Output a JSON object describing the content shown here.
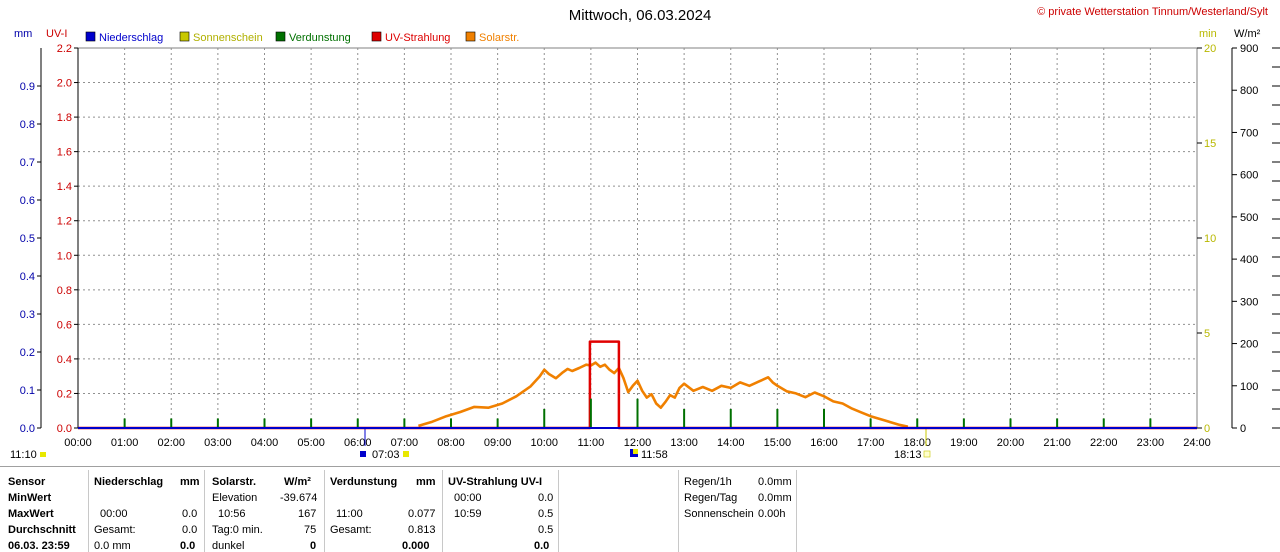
{
  "title": "Mittwoch, 06.03.2024",
  "copyright": "© private Wetterstation Tinnum/Westerland/Sylt",
  "axis_units": {
    "mm": "mm",
    "uvi": "UV-I",
    "min": "min",
    "wm2": "W/m²"
  },
  "legend": [
    {
      "label": "Niederschlag",
      "color": "#0000cc"
    },
    {
      "label": "Sonnenschein",
      "color": "#c8c800"
    },
    {
      "label": "Verdunstung",
      "color": "#007000"
    },
    {
      "label": "UV-Strahlung",
      "color": "#dd0000"
    },
    {
      "label": "Solarstr.",
      "color": "#f08000"
    }
  ],
  "markers": {
    "left_time": "11:10",
    "sunrise": "07:03",
    "noon": "11:58",
    "sunset": "18:13"
  },
  "chart_data": {
    "type": "line",
    "x_unit": "hours",
    "x_ticks": [
      "00:00",
      "01:00",
      "02:00",
      "03:00",
      "04:00",
      "05:00",
      "06:00",
      "07:00",
      "08:00",
      "09:00",
      "10:00",
      "11:00",
      "12:00",
      "13:00",
      "14:00",
      "15:00",
      "16:00",
      "17:00",
      "18:00",
      "19:00",
      "20:00",
      "21:00",
      "22:00",
      "23:00",
      "24:00"
    ],
    "xlim": [
      0,
      24
    ],
    "axes": {
      "mm": {
        "ylim": [
          0,
          1.0
        ],
        "ticks": [
          "0.0",
          "0.1",
          "0.2",
          "0.3",
          "0.4",
          "0.5",
          "0.6",
          "0.7",
          "0.8",
          "0.9"
        ]
      },
      "uvi": {
        "ylim": [
          0,
          2.2
        ],
        "ticks": [
          "0.0",
          "0.2",
          "0.4",
          "0.6",
          "0.8",
          "1.0",
          "1.2",
          "1.4",
          "1.6",
          "1.8",
          "2.0",
          "2.2"
        ]
      },
      "min": {
        "ylim": [
          0,
          20
        ],
        "ticks": [
          "0",
          "5",
          "10",
          "15",
          "20"
        ]
      },
      "wm2": {
        "ylim": [
          0,
          900
        ],
        "ticks": [
          "0",
          "100",
          "200",
          "300",
          "400",
          "500",
          "600",
          "700",
          "800",
          "900"
        ]
      }
    },
    "grid": true,
    "series": [
      {
        "name": "Solarstr.",
        "axis": "wm2",
        "x": [
          7.3,
          7.6,
          7.9,
          8.2,
          8.5,
          8.8,
          9.1,
          9.4,
          9.7,
          9.9,
          10.0,
          10.1,
          10.25,
          10.4,
          10.5,
          10.6,
          10.75,
          10.9,
          11.0,
          11.1,
          11.2,
          11.3,
          11.4,
          11.5,
          11.6,
          11.7,
          11.8,
          11.9,
          12.0,
          12.1,
          12.2,
          12.3,
          12.4,
          12.5,
          12.6,
          12.7,
          12.8,
          12.9,
          13.0,
          13.2,
          13.4,
          13.6,
          13.8,
          14.0,
          14.2,
          14.4,
          14.6,
          14.8,
          14.9,
          15.0,
          15.2,
          15.4,
          15.6,
          15.8,
          16.0,
          16.2,
          16.4,
          16.6,
          16.8,
          17.0,
          17.3,
          17.6,
          17.8
        ],
        "y": [
          5,
          15,
          28,
          38,
          50,
          48,
          58,
          75,
          98,
          122,
          138,
          128,
          118,
          132,
          140,
          135,
          142,
          150,
          148,
          155,
          145,
          150,
          138,
          130,
          142,
          118,
          85,
          100,
          112,
          88,
          72,
          80,
          58,
          48,
          62,
          78,
          72,
          95,
          105,
          88,
          97,
          88,
          100,
          95,
          108,
          100,
          110,
          120,
          108,
          100,
          87,
          82,
          73,
          84,
          75,
          63,
          58,
          46,
          37,
          28,
          18,
          8,
          3
        ]
      },
      {
        "name": "UV-Strahlung",
        "axis": "uvi",
        "x": [
          0,
          10.98,
          10.98,
          11.0,
          11.0,
          11.6,
          11.6,
          24
        ],
        "y": [
          0,
          0,
          0.5,
          0.5,
          0.5,
          0.5,
          0,
          0
        ]
      },
      {
        "name": "Verdunstung",
        "axis": "mm",
        "x": [
          1,
          2,
          3,
          4,
          5,
          6,
          7,
          8,
          9,
          10,
          11,
          12,
          13,
          14,
          15,
          16,
          17,
          18,
          19,
          20,
          21,
          22,
          23
        ],
        "y": [
          0.025,
          0.025,
          0.025,
          0.025,
          0.025,
          0.025,
          0.025,
          0.025,
          0.025,
          0.05,
          0.077,
          0.077,
          0.05,
          0.05,
          0.05,
          0.05,
          0.025,
          0.025,
          0.025,
          0.025,
          0.025,
          0.025,
          0.025
        ]
      }
    ]
  },
  "table": {
    "col1": {
      "rows": [
        "Sensor",
        "MinWert",
        "MaxWert",
        "Durchschnitt",
        "06.03. 23:59"
      ]
    },
    "niederschlag": {
      "header": "Niederschlag",
      "unit": "mm",
      "max_time": "00:00",
      "max_val": "0.0",
      "avg_label": "Gesamt:",
      "avg_val": "0.0",
      "cur_val": "0.0 mm",
      "cur_bold": "0.0"
    },
    "solar": {
      "header": "Solarstr.",
      "unit": "W/m²",
      "min_label": "Elevation",
      "min_val": "-39.674",
      "max_time": "10:56",
      "max_val": "167",
      "avg_label": "Tag:0 min.",
      "avg_val": "75",
      "cur_label": "dunkel",
      "cur_val": "0"
    },
    "verdunstung": {
      "header": "Verdunstung",
      "unit": "mm",
      "max_time": "11:00",
      "max_val": "0.077",
      "avg_label": "Gesamt:",
      "avg_val": "0.813",
      "cur_val": "0.000"
    },
    "uv": {
      "header": "UV-Strahlung UV-I",
      "min_time": "00:00",
      "min_val": "0.0",
      "max_time": "10:59",
      "max_val": "0.5",
      "avg_val": "0.5",
      "cur_val": "0.0"
    },
    "rain": [
      {
        "label": "Regen/1h",
        "value": "0.0mm"
      },
      {
        "label": "Regen/Tag",
        "value": "0.0mm"
      },
      {
        "label": "Sonnenschein",
        "value": "0.00h"
      }
    ]
  }
}
